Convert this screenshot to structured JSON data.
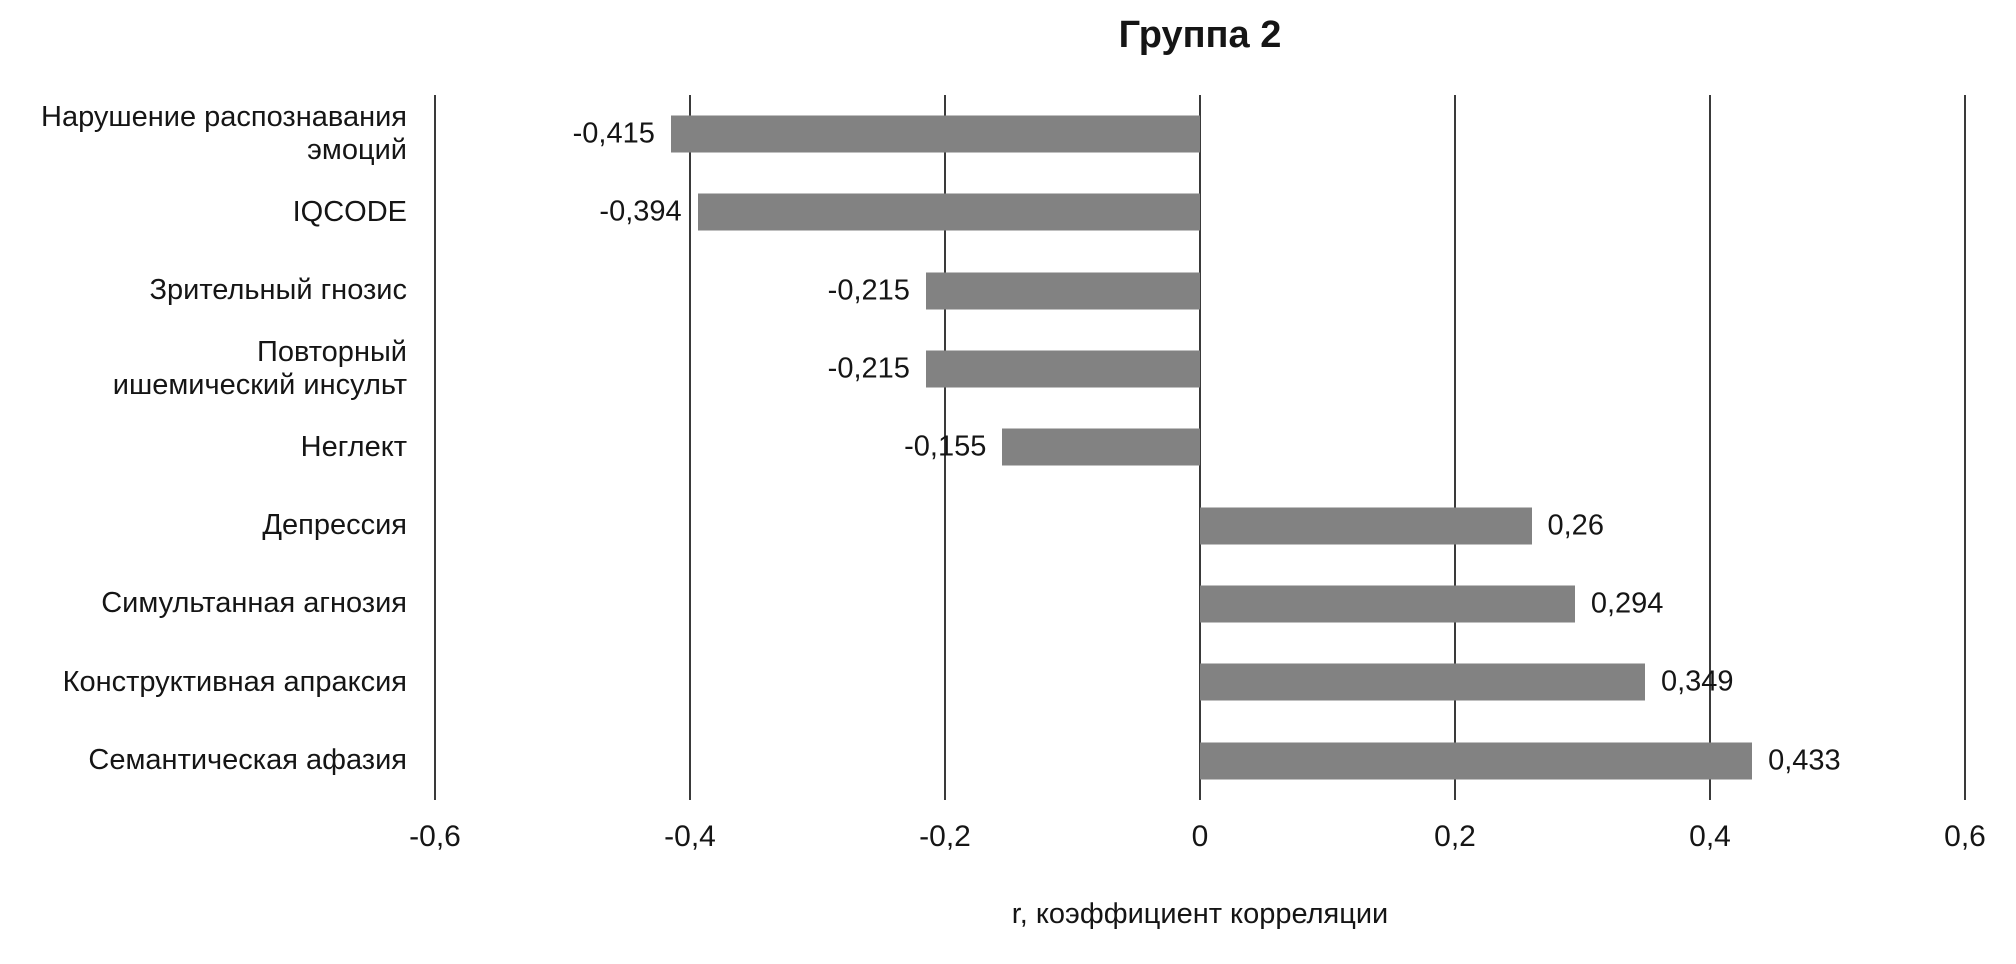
{
  "chart_data": {
    "type": "bar",
    "orientation": "horizontal",
    "title": "Группа 2",
    "xlabel": "r, коэффициент корреляции",
    "xlim": [
      -0.6,
      0.6
    ],
    "xticks": [
      -0.6,
      -0.4,
      -0.2,
      0,
      0.2,
      0.4,
      0.6
    ],
    "xtick_labels": [
      "-0,6",
      "-0,4",
      "-0,2",
      "0",
      "0,2",
      "0,4",
      "0,6"
    ],
    "bar_color": "#828282",
    "gridline_color": "#3a3a3a",
    "legend": "none",
    "grid": "vertical",
    "categories": [
      "Нарушение распознавания\nэмоций",
      "IQCODE",
      "Зрительный гнозис",
      "Повторный\nишемический инсульт",
      "Неглект",
      "Депрессия",
      "Симультанная агнозия",
      "Конструктивная апраксия",
      "Семантическая афазия"
    ],
    "values": [
      -0.415,
      -0.394,
      -0.215,
      -0.215,
      -0.155,
      0.26,
      0.294,
      0.349,
      0.433
    ],
    "value_labels": [
      "-0,415",
      "-0,394",
      "-0,215",
      "-0,215",
      "-0,155",
      "0,26",
      "0,294",
      "0,349",
      "0,433"
    ]
  }
}
